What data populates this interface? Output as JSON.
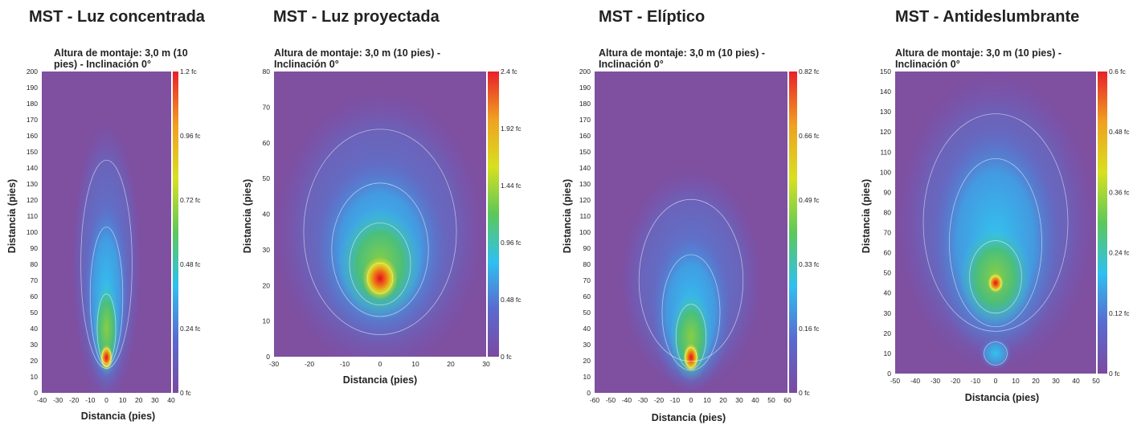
{
  "chart_data": [
    {
      "type": "heatmap",
      "title": "MST - Luz concentrada",
      "subtitle": "Altura de montaje: 3,0 m (10 pies) - Inclinación 0°",
      "xlabel": "Distancia (pies)",
      "ylabel": "Distancia (pies)",
      "xlim": [
        -40,
        40
      ],
      "ylim": [
        0,
        200
      ],
      "x_ticks": [
        "-40",
        "-30",
        "-20",
        "-10",
        "0",
        "10",
        "20",
        "30",
        "40"
      ],
      "y_ticks": [
        "0",
        "10",
        "20",
        "30",
        "40",
        "50",
        "60",
        "70",
        "80",
        "90",
        "100",
        "110",
        "120",
        "130",
        "140",
        "150",
        "160",
        "170",
        "180",
        "190",
        "200"
      ],
      "colorbar_ticks": [
        "0 fc",
        "0.24 fc",
        "0.48 fc",
        "0.72 fc",
        "0.96 fc",
        "1.2 fc"
      ],
      "colorbar_max": 1.2,
      "peak": {
        "x": 0,
        "y": 22,
        "value": 1.2
      }
    },
    {
      "type": "heatmap",
      "title": "MST - Luz proyectada",
      "subtitle": "Altura de montaje: 3,0 m (10 pies) - Inclinación 0°",
      "xlabel": "Distancia (pies)",
      "ylabel": "Distancia (pies)",
      "xlim": [
        -30,
        30
      ],
      "ylim": [
        0,
        80
      ],
      "x_ticks": [
        "-30",
        "-20",
        "-10",
        "0",
        "10",
        "20",
        "30"
      ],
      "y_ticks": [
        "0",
        "10",
        "20",
        "30",
        "40",
        "50",
        "60",
        "70",
        "80"
      ],
      "colorbar_ticks": [
        "0 fc",
        "0.48 fc",
        "0.96 fc",
        "1.44 fc",
        "1.92 fc",
        "2.4 fc"
      ],
      "colorbar_max": 2.4,
      "peak": {
        "x": 0,
        "y": 22,
        "value": 2.4
      }
    },
    {
      "type": "heatmap",
      "title": "MST - Elíptico",
      "subtitle": "Altura de montaje: 3,0 m (10 pies) - Inclinación 0°",
      "xlabel": "Distancia (pies)",
      "ylabel": "Distancia (pies)",
      "xlim": [
        -60,
        60
      ],
      "ylim": [
        0,
        200
      ],
      "x_ticks": [
        "-60",
        "-50",
        "-40",
        "-30",
        "-20",
        "-10",
        "0",
        "10",
        "20",
        "30",
        "40",
        "50",
        "60"
      ],
      "y_ticks": [
        "0",
        "10",
        "20",
        "30",
        "40",
        "50",
        "60",
        "70",
        "80",
        "90",
        "100",
        "110",
        "120",
        "130",
        "140",
        "150",
        "160",
        "170",
        "180",
        "190",
        "200"
      ],
      "colorbar_ticks": [
        "0 fc",
        "0.16 fc",
        "0.33 fc",
        "0.49 fc",
        "0.66 fc",
        "0.82 fc"
      ],
      "colorbar_max": 0.82,
      "peak": {
        "x": 0,
        "y": 22,
        "value": 0.82
      }
    },
    {
      "type": "heatmap",
      "title": "MST - Antideslumbrante",
      "subtitle": "Altura de montaje: 3,0 m (10 pies) - Inclinación 0°",
      "xlabel": "Distancia (pies)",
      "ylabel": "Distancia (pies)",
      "xlim": [
        -50,
        50
      ],
      "ylim": [
        0,
        150
      ],
      "x_ticks": [
        "-50",
        "-40",
        "-30",
        "-20",
        "-10",
        "0",
        "10",
        "20",
        "30",
        "40",
        "50"
      ],
      "y_ticks": [
        "0",
        "10",
        "20",
        "30",
        "40",
        "50",
        "60",
        "70",
        "80",
        "90",
        "100",
        "110",
        "120",
        "130",
        "140",
        "150"
      ],
      "colorbar_ticks": [
        "0 fc",
        "0.12 fc",
        "0.24 fc",
        "0.36 fc",
        "0.48 fc",
        "0.6 fc"
      ],
      "colorbar_max": 0.6,
      "peak": {
        "x": 0,
        "y": 45,
        "value": 0.6
      }
    }
  ],
  "colors": {
    "background_field": "#7f4fa0",
    "scale": [
      "#7b4aa0",
      "#5a6ad0",
      "#2fc0f0",
      "#5cc85a",
      "#d8e020",
      "#f0a020",
      "#e8202a"
    ]
  }
}
